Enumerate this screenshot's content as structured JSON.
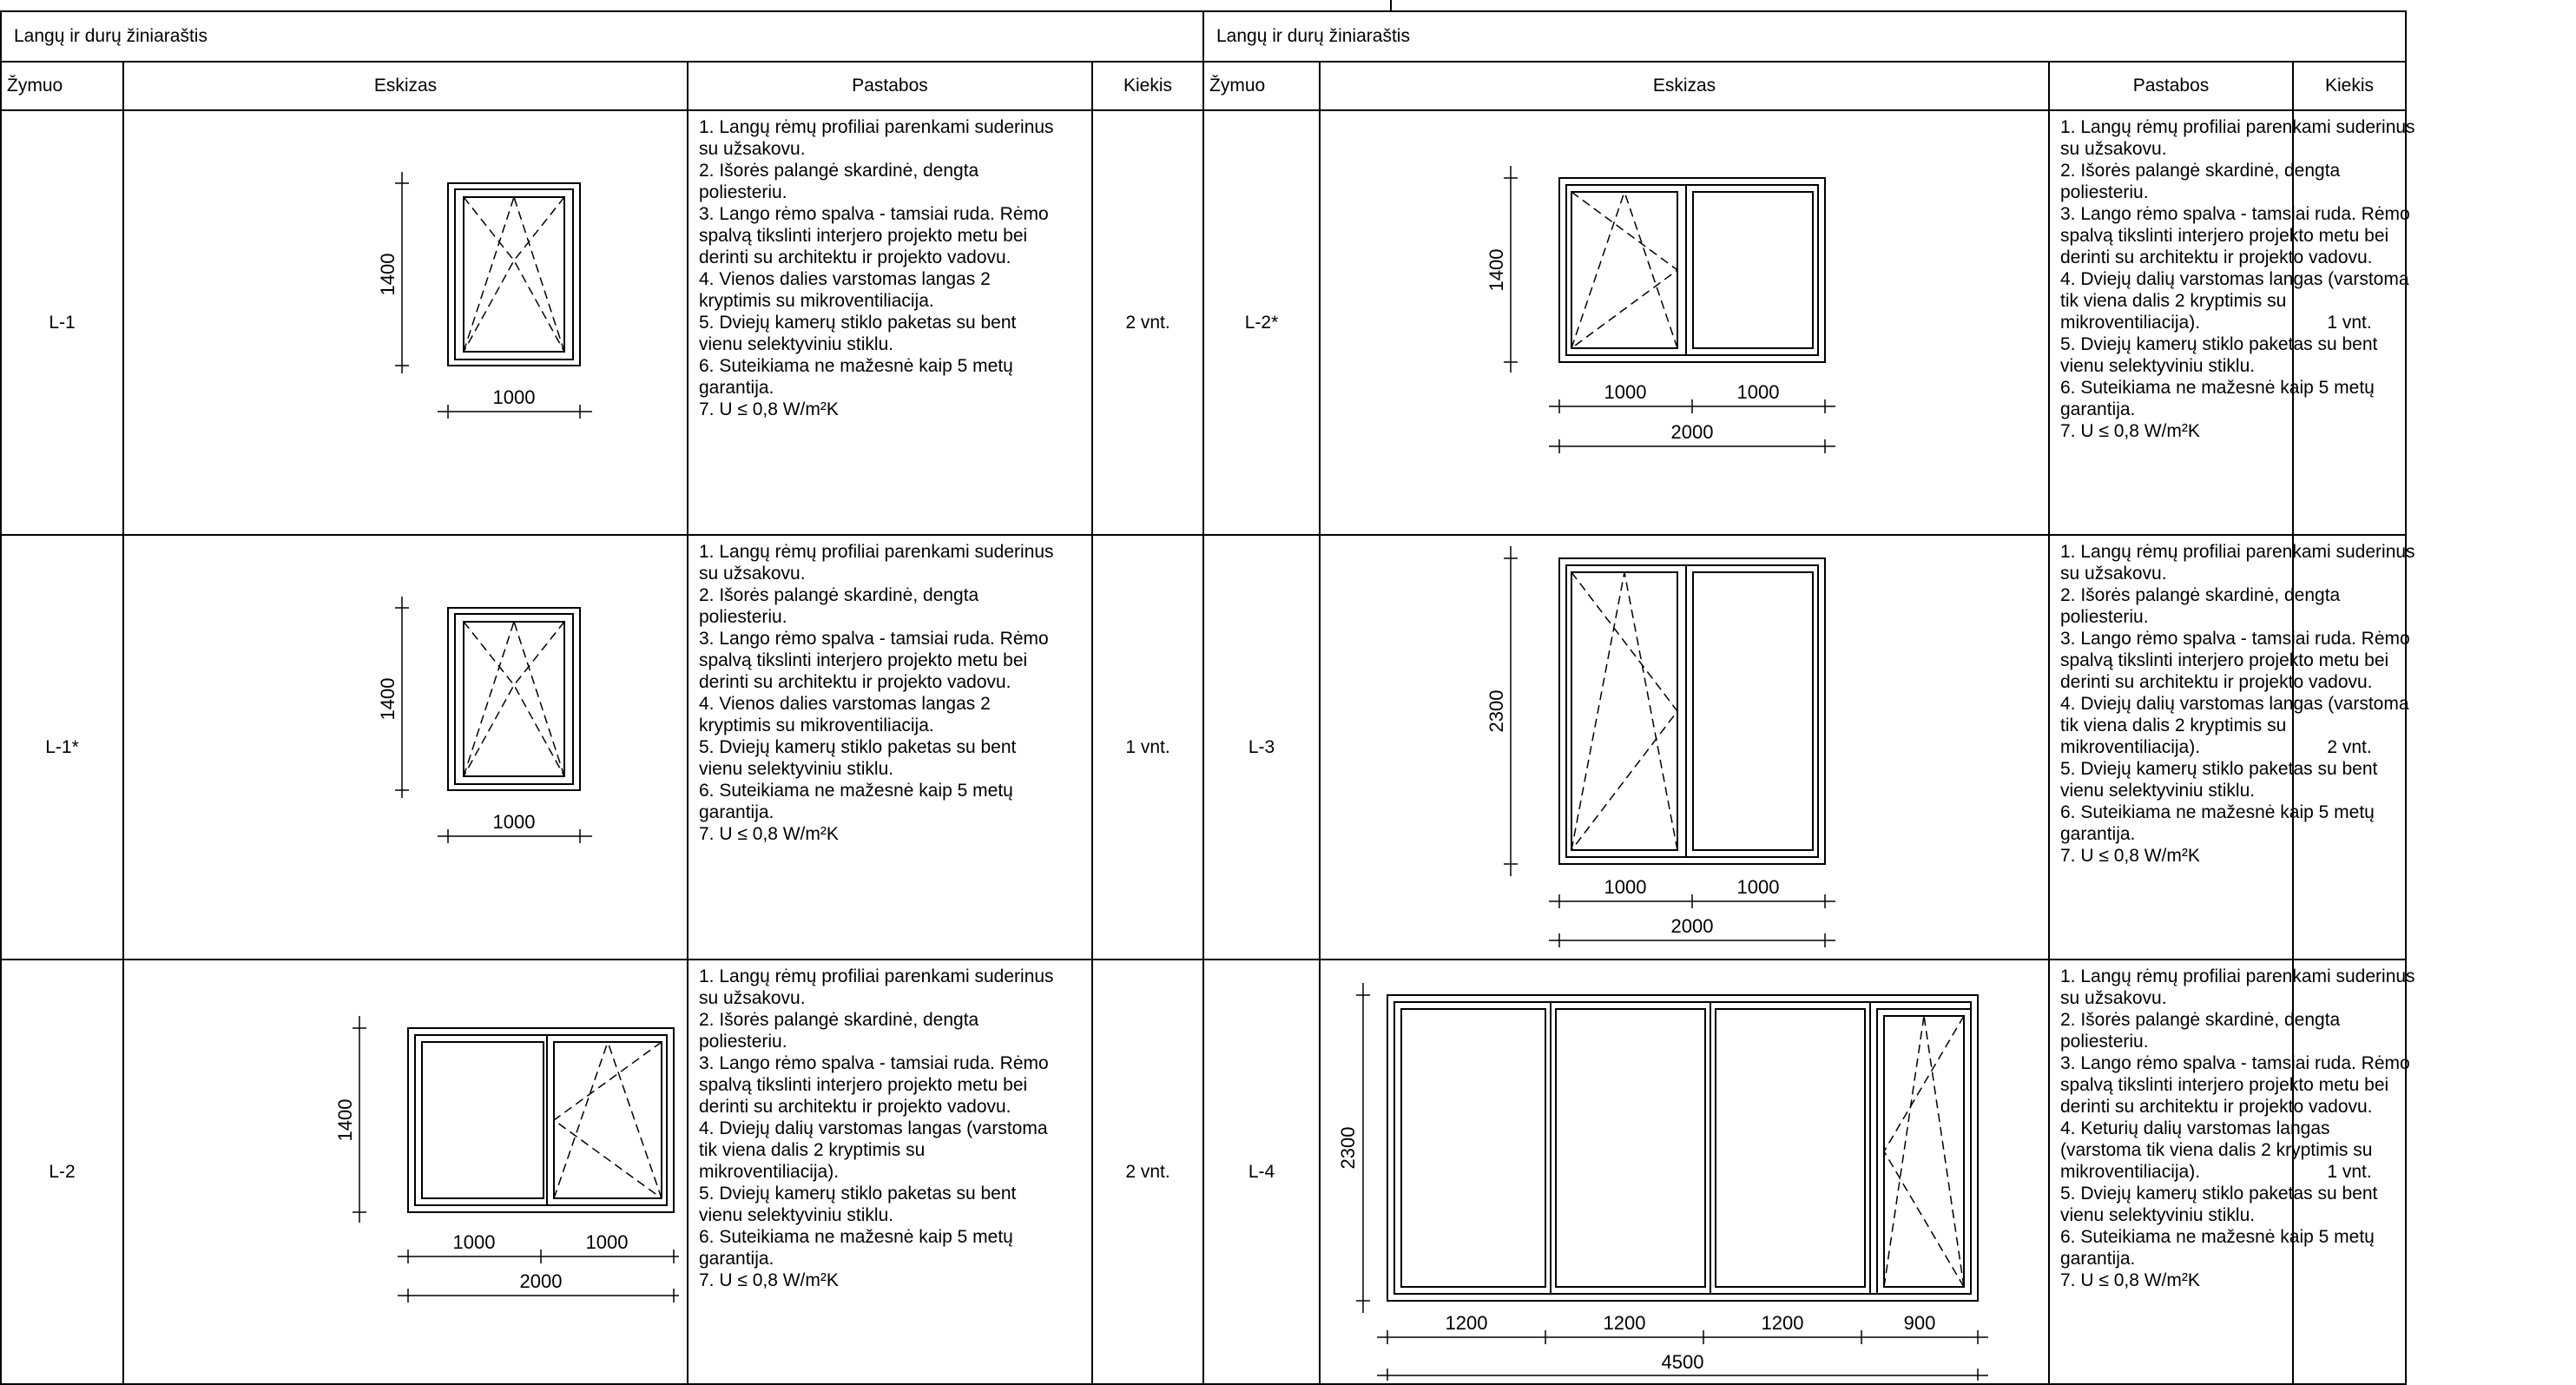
{
  "tables": [
    {
      "title": "Langų ir durų žiniaraštis",
      "headers": {
        "mark": "Žymuo",
        "sketch": "Eskizas",
        "notes": "Pastabos",
        "qty": "Kiekis"
      },
      "rows": [
        {
          "mark": "L-1",
          "qty": "2 vnt.",
          "sketch": {
            "height_label": "1400",
            "widths": [
              "1000"
            ],
            "total": "",
            "opening": "turn-tilt-right"
          },
          "notes": [
            "1. Langų rėmų profiliai parenkami suderinus",
            "su užsakovu.",
            "2. Išorės palangė skardinė, dengta",
            "poliesteriu.",
            "3. Lango rėmo spalva - tamsiai ruda. Rėmo",
            "spalvą tikslinti interjero projekto metu bei",
            "derinti su architektu ir projekto vadovu.",
            "4. Vienos dalies varstomas langas 2",
            "kryptimis su mikroventiliacija.",
            "5. Dviejų kamerų stiklo paketas su bent",
            "vienu selektyviniu stiklu.",
            "6. Suteikiama ne mažesnė kaip 5 metų",
            "garantija.",
            "7. U ≤ 0,8 W/m²K"
          ]
        },
        {
          "mark": "L-1*",
          "qty": "1 vnt.",
          "sketch": {
            "height_label": "1400",
            "widths": [
              "1000"
            ],
            "total": "",
            "opening": "turn-tilt-left"
          },
          "notes": [
            "1. Langų rėmų profiliai parenkami suderinus",
            "su užsakovu.",
            "2. Išorės palangė skardinė, dengta",
            "poliesteriu.",
            "3. Lango rėmo spalva - tamsiai ruda. Rėmo",
            "spalvą tikslinti interjero projekto metu bei",
            "derinti su architektu ir projekto vadovu.",
            "4. Vienos dalies varstomas langas 2",
            "kryptimis su mikroventiliacija.",
            "5. Dviejų kamerų stiklo paketas su bent",
            "vienu selektyviniu stiklu.",
            "6. Suteikiama ne mažesnė kaip 5 metų",
            "garantija.",
            "7. U ≤ 0,8 W/m²K"
          ]
        },
        {
          "mark": "L-2",
          "qty": "2 vnt.",
          "sketch": {
            "height_label": "1400",
            "widths": [
              "1000",
              "1000"
            ],
            "total": "2000",
            "opening": "two-pane-right-opening"
          },
          "notes": [
            "1. Langų rėmų profiliai parenkami suderinus",
            "su užsakovu.",
            "2. Išorės palangė skardinė, dengta",
            "poliesteriu.",
            "3. Lango rėmo spalva - tamsiai ruda. Rėmo",
            "spalvą tikslinti interjero projekto metu bei",
            "derinti su architektu ir projekto vadovu.",
            "4. Dviejų dalių varstomas langas (varstoma",
            "tik viena dalis 2 kryptimis su",
            "mikroventiliacija).",
            "5. Dviejų kamerų stiklo paketas su bent",
            "vienu selektyviniu stiklu.",
            "6. Suteikiama ne mažesnė kaip 5 metų",
            "garantija.",
            "7. U ≤ 0,8 W/m²K"
          ]
        }
      ]
    },
    {
      "title": "Langų ir durų žiniaraštis",
      "headers": {
        "mark": "Žymuo",
        "sketch": "Eskizas",
        "notes": "Pastabos",
        "qty": "Kiekis"
      },
      "rows": [
        {
          "mark": "L-2*",
          "qty": "1 vnt.",
          "sketch": {
            "height_label": "1400",
            "widths": [
              "1000",
              "1000"
            ],
            "total": "2000",
            "opening": "two-pane-left-opening"
          },
          "notes": [
            "1. Langų rėmų profiliai parenkami suderinus",
            "su užsakovu.",
            "2. Išorės palangė skardinė, dengta",
            "poliesteriu.",
            "3. Lango rėmo spalva - tamsiai ruda. Rėmo",
            "spalvą tikslinti interjero projekto metu bei",
            "derinti su architektu ir projekto vadovu.",
            "4. Dviejų dalių varstomas langas (varstoma",
            "tik viena dalis 2 kryptimis su",
            "mikroventiliacija).",
            "5. Dviejų kamerų stiklo paketas su bent",
            "vienu selektyviniu stiklu.",
            "6. Suteikiama ne mažesnė kaip 5 metų",
            "garantija.",
            "7. U ≤ 0,8 W/m²K"
          ]
        },
        {
          "mark": "L-3",
          "qty": "2 vnt.",
          "sketch": {
            "height_label": "2300",
            "widths": [
              "1000",
              "1000"
            ],
            "total": "2000",
            "opening": "two-pane-left-opening"
          },
          "notes": [
            "1. Langų rėmų profiliai parenkami suderinus",
            "su užsakovu.",
            "2. Išorės palangė skardinė, dengta",
            "poliesteriu.",
            "3. Lango rėmo spalva - tamsiai ruda. Rėmo",
            "spalvą tikslinti interjero projekto metu bei",
            "derinti su architektu ir projekto vadovu.",
            "4. Dviejų dalių varstomas langas (varstoma",
            "tik viena dalis 2 kryptimis su",
            "mikroventiliacija).",
            "5. Dviejų kamerų stiklo paketas su bent",
            "vienu selektyviniu stiklu.",
            "6. Suteikiama ne mažesnė kaip 5 metų",
            "garantija.",
            "7. U ≤ 0,8 W/m²K"
          ]
        },
        {
          "mark": "L-4",
          "qty": "1 vnt.",
          "sketch": {
            "height_label": "2300",
            "widths": [
              "1200",
              "1200",
              "1200",
              "900"
            ],
            "total": "4500",
            "opening": "four-pane-last-opening"
          },
          "notes": [
            "1. Langų rėmų profiliai parenkami suderinus",
            "su užsakovu.",
            "2. Išorės palangė skardinė, dengta",
            "poliesteriu.",
            "3. Lango rėmo spalva - tamsiai ruda. Rėmo",
            "spalvą tikslinti interjero projekto metu bei",
            "derinti su architektu ir projekto vadovu.",
            "4. Keturių dalių varstomas langas",
            "(varstoma tik viena dalis 2 kryptimis su",
            "mikroventiliacija).",
            "5. Dviejų kamerų stiklo paketas su bent",
            "vienu selektyviniu stiklu.",
            "6. Suteikiama ne mažesnė kaip 5 metų",
            "garantija.",
            "7. U ≤ 0,8 W/m²K"
          ]
        }
      ]
    }
  ]
}
